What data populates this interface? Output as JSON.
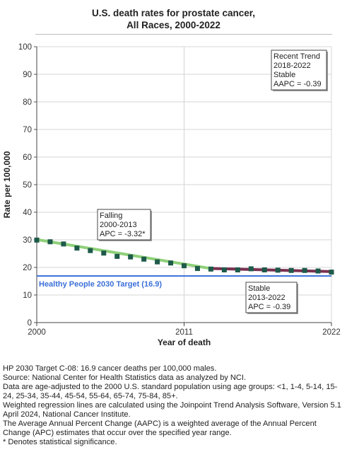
{
  "chart_data": {
    "type": "line",
    "title": "U.S. death rates for prostate cancer,",
    "subtitle": "All Races,  2000-2022",
    "xlabel": "Year of death",
    "ylabel": "Rate per 100,000",
    "xlim": [
      2000,
      2022
    ],
    "ylim": [
      0,
      100
    ],
    "x_ticks": [
      2000,
      2011,
      2022
    ],
    "y_ticks": [
      0,
      10,
      20,
      30,
      40,
      50,
      60,
      70,
      80,
      90,
      100
    ],
    "grid": true,
    "x": [
      2000,
      2001,
      2002,
      2003,
      2004,
      2005,
      2006,
      2007,
      2008,
      2009,
      2010,
      2011,
      2012,
      2013,
      2014,
      2015,
      2016,
      2017,
      2018,
      2019,
      2020,
      2021,
      2022
    ],
    "series": [
      {
        "type": "scatter",
        "color": "#1e5a4a",
        "values": [
          29.9,
          29.3,
          28.5,
          27.0,
          26.1,
          25.2,
          24.0,
          23.8,
          23.0,
          22.0,
          21.6,
          20.6,
          19.6,
          19.4,
          19.1,
          19.1,
          19.5,
          19.1,
          19.0,
          18.9,
          18.9,
          18.7,
          18.3
        ]
      },
      {
        "type": "line",
        "color": "#8fd07a",
        "x": [
          2000,
          2013
        ],
        "values": [
          30.1,
          19.6
        ]
      },
      {
        "type": "line",
        "color": "#7a3050",
        "x": [
          2013,
          2022
        ],
        "values": [
          19.6,
          18.5
        ]
      }
    ],
    "reference_line": {
      "value": 16.9,
      "label": "Healthy People 2030 Target (16.9)",
      "color": "#3b6fd9"
    },
    "annotations": [
      {
        "lines": [
          "Recent Trend",
          "2018-2022",
          "Stable",
          "AAPC = -0.39"
        ]
      },
      {
        "lines": [
          "Falling",
          "2000-2013",
          "APC = -3.32*"
        ]
      },
      {
        "lines": [
          "Stable",
          "2013-2022",
          "APC = -0.39"
        ]
      }
    ]
  },
  "footnotes": [
    "HP 2030 Target C-08: 16.9 cancer deaths per 100,000 males.",
    "Source: National Center for Health Statistics data as analyzed by NCI.",
    "Data are age-adjusted to the 2000 U.S. standard population using age groups: <1, 1-4, 5-14, 15-24, 25-34, 35-44, 45-54, 55-64, 65-74, 75-84, 85+.",
    "Weighted regression lines are calculated using the Joinpoint Trend Analysis Software, Version 5.1 April 2024, National Cancer Institute.",
    "The Average Annual Percent Change (AAPC) is a weighted average of the Annual Percent Change (APC) estimates that occur over the specified year range.",
    "* Denotes statistical significance."
  ]
}
